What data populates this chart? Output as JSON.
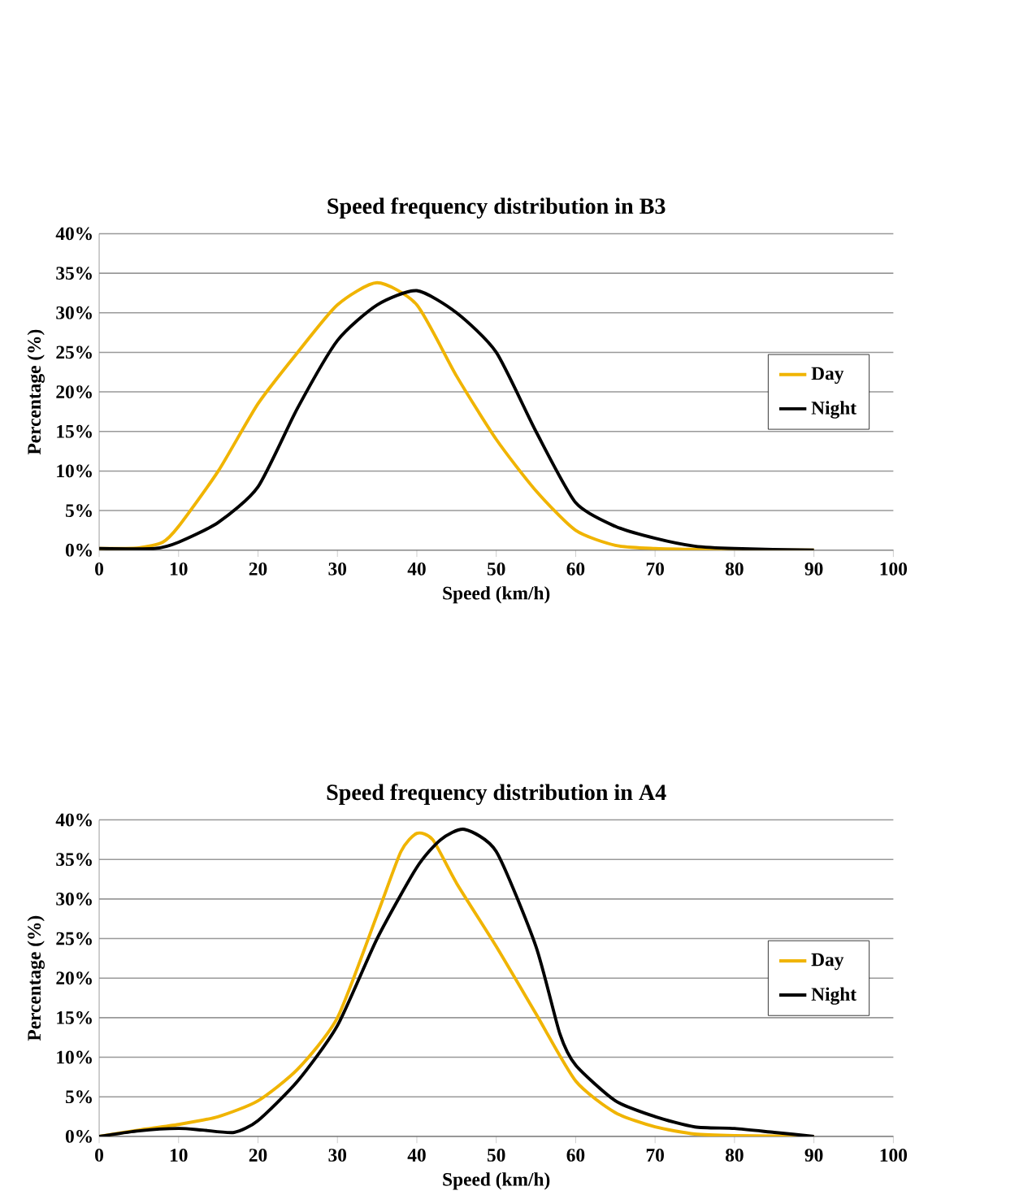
{
  "chart_data": [
    {
      "type": "line",
      "title": "Speed frequency distribution in B3",
      "xlabel": "Speed (km/h)",
      "ylabel": "Percentage (%)",
      "xlim": [
        0,
        100
      ],
      "xticks": [
        0,
        10,
        20,
        30,
        40,
        50,
        60,
        70,
        80,
        90,
        100
      ],
      "ylim": [
        0,
        40
      ],
      "yticks": [
        {
          "value": 0,
          "label": "0%"
        },
        {
          "value": 5,
          "label": "5%"
        },
        {
          "value": 10,
          "label": "10%"
        },
        {
          "value": 15,
          "label": "15%"
        },
        {
          "value": 20,
          "label": "20%"
        },
        {
          "value": 25,
          "label": "25%"
        },
        {
          "value": 30,
          "label": "30%"
        },
        {
          "value": 35,
          "label": "35%"
        },
        {
          "value": 40,
          "label": "40%"
        }
      ],
      "grid": "y",
      "legend": "right",
      "series": [
        {
          "name": "Day",
          "color": "#f0b400",
          "x": [
            0,
            5,
            8,
            10,
            15,
            20,
            25,
            30,
            35,
            40,
            45,
            50,
            55,
            60,
            65,
            70,
            75,
            80,
            90
          ],
          "values": [
            0.2,
            0.3,
            1,
            3,
            10,
            18.5,
            25,
            31,
            33.8,
            31,
            22,
            14,
            7.5,
            2.5,
            0.6,
            0.2,
            0.1,
            0,
            0
          ]
        },
        {
          "name": "Night",
          "color": "#000000",
          "x": [
            0,
            7,
            10,
            15,
            20,
            25,
            30,
            35,
            40,
            45,
            50,
            55,
            60,
            65,
            70,
            75,
            80,
            90
          ],
          "values": [
            0.2,
            0.2,
            1,
            3.5,
            8,
            18,
            26.5,
            31,
            32.8,
            30,
            25,
            15,
            6,
            3,
            1.5,
            0.5,
            0.2,
            0
          ]
        }
      ]
    },
    {
      "type": "line",
      "title": "Speed frequency distribution in A4",
      "xlabel": "Speed (km/h)",
      "ylabel": "Percentage (%)",
      "xlim": [
        0,
        100
      ],
      "xticks": [
        0,
        10,
        20,
        30,
        40,
        50,
        60,
        70,
        80,
        90,
        100
      ],
      "ylim": [
        0,
        40
      ],
      "yticks": [
        {
          "value": 0,
          "label": "0%"
        },
        {
          "value": 5,
          "label": "5%"
        },
        {
          "value": 10,
          "label": "10%"
        },
        {
          "value": 15,
          "label": "15%"
        },
        {
          "value": 20,
          "label": "20%"
        },
        {
          "value": 25,
          "label": "25%"
        },
        {
          "value": 30,
          "label": "30%"
        },
        {
          "value": 35,
          "label": "35%"
        },
        {
          "value": 40,
          "label": "40%"
        }
      ],
      "grid": "y",
      "legend": "right",
      "series": [
        {
          "name": "Day",
          "color": "#f0b400",
          "x": [
            0,
            5,
            10,
            15,
            20,
            25,
            30,
            35,
            38,
            40,
            42,
            45,
            50,
            55,
            60,
            65,
            70,
            75,
            80,
            90
          ],
          "values": [
            0,
            0.8,
            1.5,
            2.5,
            4.5,
            8.5,
            15,
            28,
            36,
            38.3,
            37.5,
            32,
            24,
            15.5,
            7,
            3,
            1.2,
            0.3,
            0.1,
            0
          ]
        },
        {
          "name": "Night",
          "color": "#000000",
          "x": [
            0,
            5,
            10,
            13,
            17,
            20,
            25,
            30,
            35,
            40,
            43,
            46,
            50,
            55,
            58,
            60,
            65,
            70,
            75,
            80,
            85,
            90
          ],
          "values": [
            0,
            0.7,
            1,
            0.8,
            0.5,
            2,
            7,
            14,
            25,
            34,
            37.5,
            38.8,
            36,
            24,
            13,
            9,
            4.5,
            2.5,
            1.2,
            1,
            0.5,
            0
          ]
        }
      ]
    }
  ]
}
